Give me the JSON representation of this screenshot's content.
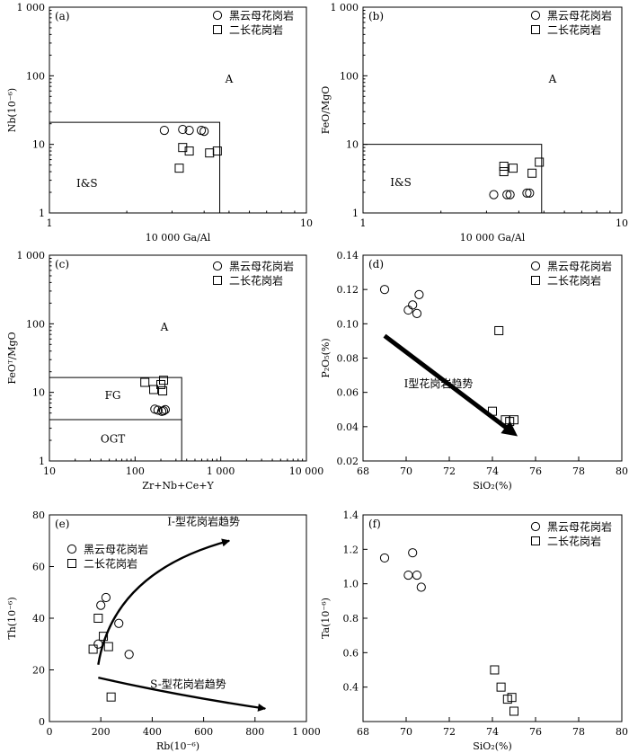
{
  "chart_data": [
    {
      "id": "a",
      "type": "scatter",
      "panel_label": "(a)",
      "xlabel": "10 000 Ga/Al",
      "ylabel": "Nb(10⁻⁶)",
      "xscale": "log",
      "yscale": "log",
      "xlim": [
        1,
        10
      ],
      "ylim": [
        1,
        1000
      ],
      "xticks": [
        {
          "v": 1,
          "t": "1"
        },
        {
          "v": 10,
          "t": "10"
        }
      ],
      "yticks": [
        {
          "v": 1,
          "t": "1"
        },
        {
          "v": 10,
          "t": "10"
        },
        {
          "v": 100,
          "t": "100"
        },
        {
          "v": 1000,
          "t": "1 000"
        }
      ],
      "legend": "top-right",
      "series": [
        {
          "name": "黑云母花岗岩",
          "marker": "circle",
          "points": [
            [
              2.8,
              16
            ],
            [
              3.3,
              16.5
            ],
            [
              3.5,
              16
            ],
            [
              3.9,
              16
            ],
            [
              4.0,
              15.5
            ]
          ]
        },
        {
          "name": "二长花岗岩",
          "marker": "square",
          "points": [
            [
              3.2,
              4.5
            ],
            [
              3.3,
              9
            ],
            [
              3.5,
              8
            ],
            [
              4.2,
              7.5
            ],
            [
              4.5,
              8
            ]
          ]
        }
      ],
      "boundaries": [
        [
          [
            1,
            21
          ],
          [
            4.6,
            21
          ],
          [
            4.6,
            1
          ]
        ]
      ],
      "field_labels": [
        {
          "text": "A",
          "x": 5.0,
          "y": 90
        },
        {
          "text": "I&S",
          "x": 1.4,
          "y": 2.7
        }
      ]
    },
    {
      "id": "b",
      "type": "scatter",
      "panel_label": "(b)",
      "xlabel": "10 000 Ga/Al",
      "ylabel": "FeO/MgO",
      "xscale": "log",
      "yscale": "log",
      "xlim": [
        1,
        10
      ],
      "ylim": [
        1,
        1000
      ],
      "xticks": [
        {
          "v": 1,
          "t": "1"
        },
        {
          "v": 10,
          "t": "10"
        }
      ],
      "yticks": [
        {
          "v": 1,
          "t": "1"
        },
        {
          "v": 10,
          "t": "10"
        },
        {
          "v": 100,
          "t": "100"
        },
        {
          "v": 1000,
          "t": "1 000"
        }
      ],
      "legend": "top-right",
      "series": [
        {
          "name": "黑云母花岗岩",
          "marker": "circle",
          "points": [
            [
              3.2,
              1.85
            ],
            [
              3.6,
              1.85
            ],
            [
              3.7,
              1.85
            ],
            [
              4.3,
              1.95
            ],
            [
              4.4,
              1.95
            ]
          ]
        },
        {
          "name": "二长花岗岩",
          "marker": "square",
          "points": [
            [
              3.5,
              4.0
            ],
            [
              3.5,
              4.8
            ],
            [
              3.8,
              4.5
            ],
            [
              4.5,
              3.8
            ],
            [
              4.8,
              5.5
            ]
          ]
        }
      ],
      "boundaries": [
        [
          [
            1,
            10
          ],
          [
            4.9,
            10
          ],
          [
            4.9,
            1
          ]
        ]
      ],
      "field_labels": [
        {
          "text": "A",
          "x": 5.4,
          "y": 90
        },
        {
          "text": "I&S",
          "x": 1.4,
          "y": 2.8
        }
      ]
    },
    {
      "id": "c",
      "type": "scatter",
      "panel_label": "(c)",
      "xlabel": "Zr+Nb+Ce+Y",
      "ylabel": "FeOᵀ/MgO",
      "xscale": "log",
      "yscale": "log",
      "xlim": [
        10,
        10000
      ],
      "ylim": [
        1,
        1000
      ],
      "xticks": [
        {
          "v": 10,
          "t": "10"
        },
        {
          "v": 100,
          "t": "100"
        },
        {
          "v": 1000,
          "t": "1 000"
        },
        {
          "v": 10000,
          "t": "10 000"
        }
      ],
      "yticks": [
        {
          "v": 1,
          "t": "1"
        },
        {
          "v": 10,
          "t": "10"
        },
        {
          "v": 100,
          "t": "100"
        },
        {
          "v": 1000,
          "t": "1 000"
        }
      ],
      "legend": "top-right",
      "series": [
        {
          "name": "黑云母花岗岩",
          "marker": "circle",
          "points": [
            [
              170,
              5.7
            ],
            [
              185,
              5.5
            ],
            [
              205,
              5.3
            ],
            [
              215,
              5.4
            ],
            [
              225,
              5.6
            ]
          ]
        },
        {
          "name": "二长花岗岩",
          "marker": "square",
          "points": [
            [
              130,
              14
            ],
            [
              165,
              11
            ],
            [
              200,
              13
            ],
            [
              210,
              10.5
            ],
            [
              215,
              15
            ]
          ]
        }
      ],
      "boundaries": [
        [
          [
            10,
            16.5
          ],
          [
            350,
            16.5
          ],
          [
            350,
            1
          ]
        ],
        [
          [
            10,
            4
          ],
          [
            350,
            4
          ]
        ]
      ],
      "field_labels": [
        {
          "text": "A",
          "x": 220,
          "y": 90
        },
        {
          "text": "FG",
          "x": 55,
          "y": 9
        },
        {
          "text": "OGT",
          "x": 55,
          "y": 2.1
        }
      ]
    },
    {
      "id": "d",
      "type": "scatter",
      "panel_label": "(d)",
      "xlabel": "SiO₂(%)",
      "ylabel": "P₂O₅(%)",
      "xscale": "linear",
      "yscale": "linear",
      "xlim": [
        68,
        80
      ],
      "ylim": [
        0.02,
        0.14
      ],
      "xticks": [
        {
          "v": 68,
          "t": "68"
        },
        {
          "v": 70,
          "t": "70"
        },
        {
          "v": 72,
          "t": "72"
        },
        {
          "v": 74,
          "t": "74"
        },
        {
          "v": 76,
          "t": "76"
        },
        {
          "v": 78,
          "t": "78"
        },
        {
          "v": 80,
          "t": "80"
        }
      ],
      "yticks": [
        {
          "v": 0.02,
          "t": "0.02"
        },
        {
          "v": 0.04,
          "t": "0.04"
        },
        {
          "v": 0.06,
          "t": "0.06"
        },
        {
          "v": 0.08,
          "t": "0.08"
        },
        {
          "v": 0.1,
          "t": "0.10"
        },
        {
          "v": 0.12,
          "t": "0.12"
        },
        {
          "v": 0.14,
          "t": "0.14"
        }
      ],
      "legend": "top-right",
      "series": [
        {
          "name": "黑云母花岗岩",
          "marker": "circle",
          "points": [
            [
              69.0,
              0.12
            ],
            [
              70.1,
              0.108
            ],
            [
              70.3,
              0.111
            ],
            [
              70.5,
              0.106
            ],
            [
              70.6,
              0.117
            ]
          ]
        },
        {
          "name": "二长花岗岩",
          "marker": "square",
          "points": [
            [
              74.0,
              0.049
            ],
            [
              74.3,
              0.096
            ],
            [
              74.6,
              0.044
            ],
            [
              74.8,
              0.043
            ],
            [
              75.0,
              0.044
            ]
          ]
        }
      ],
      "arrows": [
        {
          "label": "I型花岗岩趋势",
          "from": [
            69.0,
            0.093
          ],
          "to": [
            75.0,
            0.036
          ],
          "thick": true,
          "label_at": [
            71.5,
            0.063
          ]
        }
      ]
    },
    {
      "id": "e",
      "type": "scatter",
      "panel_label": "(e)",
      "xlabel": "Rb(10⁻⁶)",
      "ylabel": "Th(10⁻⁶)",
      "xscale": "linear",
      "yscale": "linear",
      "xlim": [
        0,
        1000
      ],
      "ylim": [
        0,
        80
      ],
      "xticks": [
        {
          "v": 0,
          "t": "0"
        },
        {
          "v": 200,
          "t": "200"
        },
        {
          "v": 400,
          "t": "400"
        },
        {
          "v": 600,
          "t": "600"
        },
        {
          "v": 800,
          "t": "800"
        },
        {
          "v": 1000,
          "t": "1 000"
        }
      ],
      "yticks": [
        {
          "v": 0,
          "t": "0"
        },
        {
          "v": 20,
          "t": "20"
        },
        {
          "v": 40,
          "t": "40"
        },
        {
          "v": 60,
          "t": "60"
        },
        {
          "v": 80,
          "t": "80"
        }
      ],
      "legend": "top-left",
      "series": [
        {
          "name": "黑云母花岗岩",
          "marker": "circle",
          "points": [
            [
              190,
              30
            ],
            [
              200,
              45
            ],
            [
              220,
              48
            ],
            [
              270,
              38
            ],
            [
              310,
              26
            ]
          ]
        },
        {
          "name": "二长花岗岩",
          "marker": "square",
          "points": [
            [
              170,
              28
            ],
            [
              190,
              40
            ],
            [
              210,
              33
            ],
            [
              230,
              29
            ],
            [
              240,
              9.5
            ]
          ]
        }
      ],
      "arrows": [
        {
          "label": "I-型花岗岩趋势",
          "curve": [
            [
              190,
              22
            ],
            [
              250,
              58
            ],
            [
              700,
              70
            ]
          ],
          "label_at": [
            600,
            76
          ]
        },
        {
          "label": "S-型花岗岩趋势",
          "curve": [
            [
              190,
              17
            ],
            [
              500,
              10
            ],
            [
              840,
              5
            ]
          ],
          "label_at": [
            540,
            13
          ]
        }
      ]
    },
    {
      "id": "f",
      "type": "scatter",
      "panel_label": "(f)",
      "xlabel": "SiO₂(%)",
      "ylabel": "Ta(10⁻⁶)",
      "xscale": "linear",
      "yscale": "linear",
      "xlim": [
        68,
        80
      ],
      "ylim": [
        0.2,
        1.4
      ],
      "xticks": [
        {
          "v": 68,
          "t": "68"
        },
        {
          "v": 70,
          "t": "70"
        },
        {
          "v": 72,
          "t": "72"
        },
        {
          "v": 74,
          "t": "74"
        },
        {
          "v": 76,
          "t": "76"
        },
        {
          "v": 78,
          "t": "78"
        },
        {
          "v": 80,
          "t": "80"
        }
      ],
      "yticks": [
        {
          "v": 0.4,
          "t": "0.4"
        },
        {
          "v": 0.6,
          "t": "0.6"
        },
        {
          "v": 0.8,
          "t": "0.8"
        },
        {
          "v": 1.0,
          "t": "1.0"
        },
        {
          "v": 1.2,
          "t": "1.2"
        },
        {
          "v": 1.4,
          "t": "1.4"
        }
      ],
      "legend": "top-right",
      "series": [
        {
          "name": "黑云母花岗岩",
          "marker": "circle",
          "points": [
            [
              69.0,
              1.15
            ],
            [
              70.1,
              1.05
            ],
            [
              70.3,
              1.18
            ],
            [
              70.5,
              1.05
            ],
            [
              70.7,
              0.98
            ]
          ]
        },
        {
          "name": "二长花岗岩",
          "marker": "square",
          "points": [
            [
              74.1,
              0.5
            ],
            [
              74.4,
              0.4
            ],
            [
              74.7,
              0.33
            ],
            [
              74.9,
              0.34
            ],
            [
              75.0,
              0.26
            ]
          ]
        }
      ]
    }
  ]
}
